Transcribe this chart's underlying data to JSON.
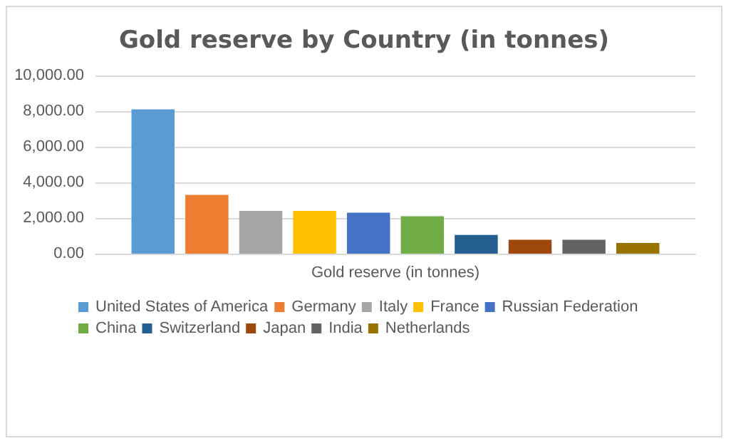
{
  "chart_data": {
    "type": "bar",
    "title": "Gold reserve by Country (in tonnes)",
    "categories": [
      "Gold reserve (in tonnes)"
    ],
    "series": [
      {
        "name": "United States of America",
        "color": "#5b9bd5",
        "values": [
          8100
        ]
      },
      {
        "name": "Germany",
        "color": "#ed7d31",
        "values": [
          3300
        ]
      },
      {
        "name": "Italy",
        "color": "#a5a5a5",
        "values": [
          2400
        ]
      },
      {
        "name": "France",
        "color": "#ffc000",
        "values": [
          2400
        ]
      },
      {
        "name": "Russian Federation",
        "color": "#4472c4",
        "values": [
          2300
        ]
      },
      {
        "name": "China",
        "color": "#70ad47",
        "values": [
          2100
        ]
      },
      {
        "name": "Switzerland",
        "color": "#255e91",
        "values": [
          1050
        ]
      },
      {
        "name": "Japan",
        "color": "#9e480e",
        "values": [
          780
        ]
      },
      {
        "name": "India",
        "color": "#636363",
        "values": [
          780
        ]
      },
      {
        "name": "Netherlands",
        "color": "#997300",
        "values": [
          600
        ]
      }
    ],
    "ylim": [
      0,
      10000
    ],
    "yticks": [
      {
        "value": 0,
        "label": "0.00"
      },
      {
        "value": 2000,
        "label": "2,000.00"
      },
      {
        "value": 4000,
        "label": "4,000.00"
      },
      {
        "value": 6000,
        "label": "6,000.00"
      },
      {
        "value": 8000,
        "label": "8,000.00"
      },
      {
        "value": 10000,
        "label": "10,000.00"
      }
    ],
    "grid": "y",
    "legend": "bottom"
  }
}
